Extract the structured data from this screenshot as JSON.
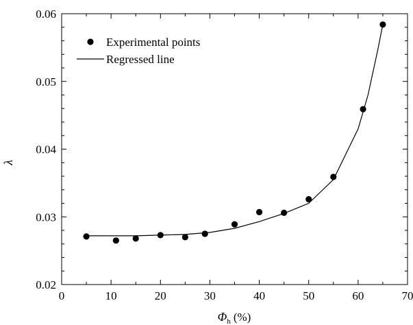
{
  "chart_data": {
    "type": "scatter",
    "xlabel": {
      "symbol": "Φ",
      "subscript": "h",
      "unit": "(%)"
    },
    "ylabel": "λ",
    "xlim": [
      0,
      70
    ],
    "ylim": [
      0.02,
      0.06
    ],
    "x_ticks": [
      0,
      10,
      20,
      30,
      40,
      50,
      60,
      70
    ],
    "x_tick_labels": [
      "0",
      "10",
      "20",
      "30",
      "40",
      "50",
      "60",
      "70"
    ],
    "y_ticks": [
      0.02,
      0.03,
      0.04,
      0.05,
      0.06
    ],
    "y_tick_labels": [
      "0.02",
      "0.03",
      "0.04",
      "0.05",
      "0.06"
    ],
    "grid": false,
    "legend_position": "top-left",
    "series": [
      {
        "name": "Experimental points",
        "kind": "points",
        "x": [
          5,
          11,
          15,
          20,
          25,
          29,
          35,
          40,
          45,
          50,
          55,
          61,
          65
        ],
        "y": [
          0.0271,
          0.0265,
          0.0268,
          0.0273,
          0.027,
          0.0275,
          0.0289,
          0.0307,
          0.0306,
          0.0326,
          0.0359,
          0.0459,
          0.0584
        ]
      },
      {
        "name": "Regressed line",
        "kind": "line",
        "x": [
          5,
          10,
          15,
          20,
          25,
          30,
          35,
          40,
          45,
          50,
          55,
          60,
          62,
          64,
          65
        ],
        "y": [
          0.0272,
          0.0272,
          0.0272,
          0.0273,
          0.0274,
          0.0277,
          0.0283,
          0.0293,
          0.0305,
          0.032,
          0.0355,
          0.043,
          0.048,
          0.0547,
          0.0584
        ]
      }
    ]
  }
}
